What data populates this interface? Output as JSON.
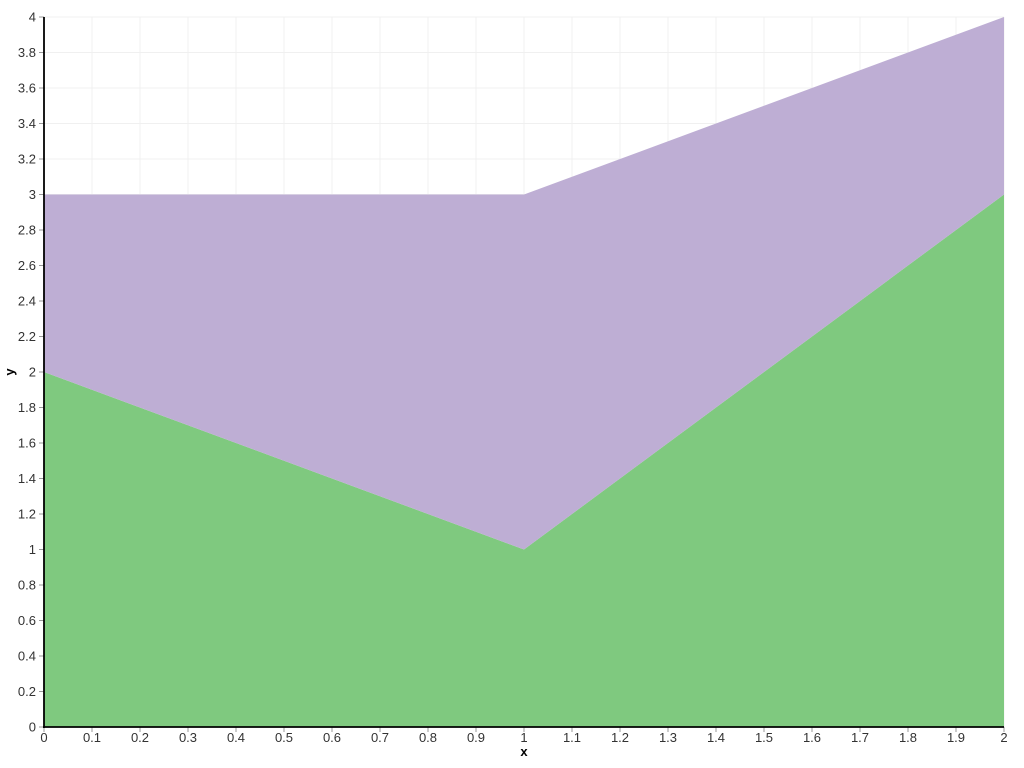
{
  "figure": {
    "background": "#ffffff"
  },
  "chart_data": {
    "type": "area",
    "stacked": true,
    "x": [
      0,
      1,
      2
    ],
    "series": [
      {
        "values": [
          2,
          1,
          3
        ],
        "color": "#7fc97f",
        "cumulative_top": [
          2,
          1,
          3
        ]
      },
      {
        "values": [
          1,
          2,
          1
        ],
        "color": "#beaed4",
        "cumulative_top": [
          3,
          3,
          4
        ]
      }
    ],
    "xlabel": "x",
    "ylabel": "y",
    "xlim": [
      0,
      2
    ],
    "ylim": [
      0,
      4
    ],
    "grid": true,
    "legend": "none",
    "x_ticks": [
      0,
      0.1,
      0.2,
      0.3,
      0.4,
      0.5,
      0.6,
      0.7,
      0.8,
      0.9,
      1,
      1.1,
      1.2,
      1.3,
      1.4,
      1.5,
      1.6,
      1.7,
      1.8,
      1.9,
      2
    ],
    "x_tick_labels": [
      "0",
      "0.1",
      "0.2",
      "0.3",
      "0.4",
      "0.5",
      "0.6",
      "0.7",
      "0.8",
      "0.9",
      "1",
      "1.1",
      "1.2",
      "1.3",
      "1.4",
      "1.5",
      "1.6",
      "1.7",
      "1.8",
      "1.9",
      "2"
    ],
    "y_ticks": [
      0,
      0.2,
      0.4,
      0.6,
      0.8,
      1,
      1.2,
      1.4,
      1.6,
      1.8,
      2,
      2.2,
      2.4,
      2.6,
      2.8,
      3,
      3.2,
      3.4,
      3.6,
      3.8,
      4
    ],
    "y_tick_labels": [
      "0",
      "0.2",
      "0.4",
      "0.6",
      "0.8",
      "1",
      "1.2",
      "1.4",
      "1.6",
      "1.8",
      "2",
      "2.2",
      "2.4",
      "2.6",
      "2.8",
      "3",
      "3.2",
      "3.4",
      "3.6",
      "3.8",
      "4"
    ],
    "colors": {
      "grid": "#f0f0f0",
      "axis_line": "#000000",
      "tick_mark": "#999999",
      "tick_label": "#333333",
      "axis_title": "#000000"
    }
  }
}
